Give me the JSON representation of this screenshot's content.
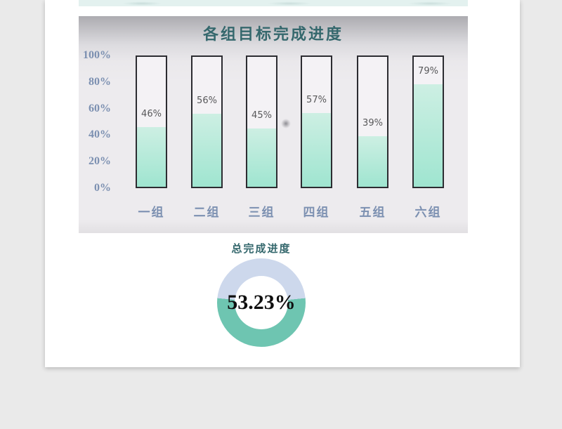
{
  "colors": {
    "page_bg": "#eaeaea",
    "strip": "#e3f1ef",
    "panel_top": "#acabb0",
    "panel_bg": "#edebee",
    "title_teal": "#35686d",
    "axis_blue": "#7c90b1",
    "outline": "#2c2c31",
    "bar_empty": "#f4f2f5",
    "mint_top": "#cdefe3",
    "mint_bottom": "#9fe5d0",
    "value_gray": "#58585a",
    "accent_teal": "#6ec5b1",
    "lavender": "#cdd8ec"
  },
  "chart_data": [
    {
      "type": "bar",
      "title": "各组目标完成进度",
      "categories": [
        "一组",
        "二组",
        "三组",
        "四组",
        "五组",
        "六组"
      ],
      "values": [
        46,
        56,
        45,
        57,
        39,
        79
      ],
      "value_labels": [
        "46%",
        "56%",
        "45%",
        "57%",
        "39%",
        "79%"
      ],
      "y_ticks": [
        "100%",
        "80%",
        "60%",
        "40%",
        "20%",
        "0%"
      ],
      "ylim": [
        0,
        100
      ],
      "grid": false,
      "legend": "none",
      "bar_style": "outlined-thermometer, mint gradient fill, value label above fill"
    },
    {
      "type": "pie",
      "subtype": "donut",
      "title": "总完成进度",
      "center_label": "53.23%",
      "slices": [
        {
          "name": "completed",
          "value": 53.23,
          "color": "#6ec5b1"
        },
        {
          "name": "remaining",
          "value": 46.77,
          "color": "#cdd8ec"
        }
      ],
      "layout_hint": "completed arc centered on bottom of ring"
    }
  ]
}
